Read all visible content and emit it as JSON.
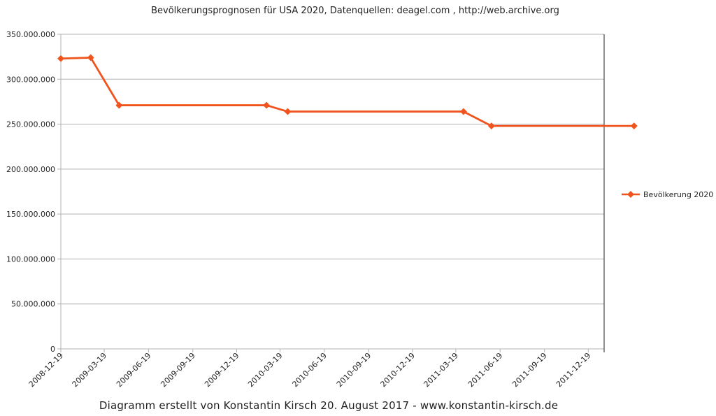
{
  "chart_data": {
    "type": "line",
    "title": "Bevölkerungsprognosen für USA 2020, Datenquellen: deagel.com , http://web.archive.org",
    "xlabel": "",
    "ylabel": "",
    "x_ticks": [
      "2008-12-19",
      "2009-03-19",
      "2009-06-19",
      "2009-09-19",
      "2009-12-19",
      "2010-03-19",
      "2010-06-19",
      "2010-09-19",
      "2010-12-19",
      "2011-03-19",
      "2011-06-19",
      "2011-09-19",
      "2011-12-19"
    ],
    "x_range": [
      "2008-12-19",
      "2012-03-23"
    ],
    "ylim": [
      0,
      350000000
    ],
    "y_ticks": [
      "0",
      "50.000.000",
      "100.000.000",
      "150.000.000",
      "200.000.000",
      "250.000.000",
      "300.000.000",
      "350.000.000"
    ],
    "grid": true,
    "legend_position": "right",
    "series": [
      {
        "name": "Bevölkerung 2020",
        "color": "#f0541e",
        "points": [
          {
            "x": "2008-12-19",
            "y": 323000000
          },
          {
            "x": "2009-02-19",
            "y": 324000000
          },
          {
            "x": "2009-04-19",
            "y": 271000000
          },
          {
            "x": "2010-02-19",
            "y": 271000000
          },
          {
            "x": "2010-04-04",
            "y": 264000000
          },
          {
            "x": "2011-04-04",
            "y": 264000000
          },
          {
            "x": "2011-06-01",
            "y": 248000000
          },
          {
            "x": "2012-03-23",
            "y": 248000000
          }
        ]
      }
    ]
  },
  "footer": {
    "credit": "Diagramm erstellt von Konstantin Kirsch 20. August 2017 - www.konstantin-kirsch.de"
  }
}
